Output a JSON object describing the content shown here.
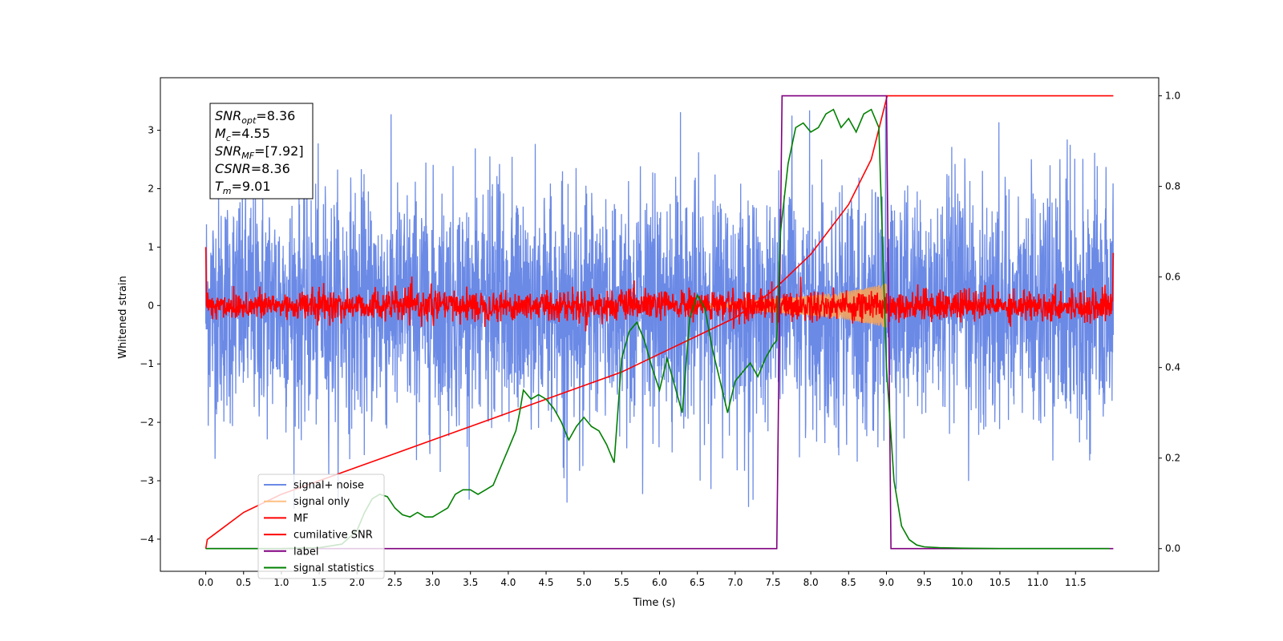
{
  "chart_data": {
    "type": "line",
    "xlabel": "Time (s)",
    "ylabel": "Whitened strain",
    "xlim": [
      -0.6,
      12.6
    ],
    "ylim": [
      -4.55,
      3.9
    ],
    "y2lim": [
      -0.05,
      1.04
    ],
    "x_ticks": [
      "0.0",
      "0.5",
      "1.0",
      "1.5",
      "2.0",
      "2.5",
      "3.0",
      "3.5",
      "4.0",
      "4.5",
      "5.0",
      "5.5",
      "6.0",
      "6.5",
      "7.0",
      "7.5",
      "8.0",
      "8.5",
      "9.0",
      "9.5",
      "10.0",
      "10.5",
      "11.0",
      "11.5"
    ],
    "y_ticks": [
      "3",
      "2",
      "1",
      "0",
      "−1",
      "−2",
      "−3",
      "−4"
    ],
    "y2_ticks": [
      "1.0",
      "0.8",
      "0.6",
      "0.4",
      "0.2",
      "0.0"
    ],
    "grid": false,
    "legend_position": "lower-left",
    "annotation": {
      "lines": [
        {
          "sym": "SNR",
          "sub": "opt",
          "value": "=8.36"
        },
        {
          "sym": "M",
          "sub": "c",
          "value": "=4.55"
        },
        {
          "sym": "SNR",
          "sub": "MF",
          "value": "=[7.92]"
        },
        {
          "sym": "CSNR",
          "sub": "",
          "value": "=8.36"
        },
        {
          "sym": "T",
          "sub": "m",
          "value": "=9.01"
        }
      ]
    },
    "series": [
      {
        "name": "signal+ noise",
        "color": "#6b8ae6",
        "axis": "left",
        "description_values": {
          "t_range": [
            0,
            12
          ],
          "std": 1.0
        }
      },
      {
        "name": "signal only",
        "color": "#f5a35c",
        "axis": "left",
        "envelope": {
          "t": [
            6.5,
            7.0,
            7.5,
            8.0,
            8.5,
            8.8,
            9.0,
            9.01
          ],
          "amp": [
            0.03,
            0.07,
            0.12,
            0.17,
            0.25,
            0.32,
            0.38,
            0.0
          ]
        }
      },
      {
        "name": "MF",
        "color": "#ff0000",
        "axis": "left",
        "description_values": {
          "t_range": [
            0,
            12
          ],
          "std": 0.13
        }
      },
      {
        "name": "cumilative SNR",
        "color": "#ff0000",
        "axis": "right",
        "x": [
          0.0,
          0.02,
          0.1,
          0.5,
          1.0,
          1.5,
          2.0,
          2.5,
          3.0,
          3.5,
          4.0,
          4.5,
          5.0,
          5.5,
          6.0,
          6.5,
          7.0,
          7.5,
          8.0,
          8.5,
          8.8,
          9.01,
          9.02,
          12.0
        ],
        "values": [
          0.0,
          0.02,
          0.03,
          0.08,
          0.12,
          0.15,
          0.18,
          0.21,
          0.24,
          0.27,
          0.3,
          0.33,
          0.36,
          0.39,
          0.43,
          0.47,
          0.51,
          0.57,
          0.65,
          0.76,
          0.86,
          1.0,
          1.0,
          1.0
        ]
      },
      {
        "name": "label",
        "color": "#800080",
        "axis": "right",
        "x": [
          0.0,
          7.55,
          7.62,
          9.0,
          9.06,
          12.0
        ],
        "values": [
          0.0,
          0.0,
          1.0,
          1.0,
          0.0,
          0.0
        ]
      },
      {
        "name": "signal statistics",
        "color": "#008000",
        "axis": "right",
        "x": [
          0.0,
          1.0,
          1.5,
          1.8,
          2.0,
          2.1,
          2.2,
          2.3,
          2.4,
          2.5,
          2.6,
          2.7,
          2.8,
          2.9,
          3.0,
          3.1,
          3.2,
          3.3,
          3.4,
          3.5,
          3.6,
          3.7,
          3.8,
          3.9,
          4.0,
          4.1,
          4.15,
          4.2,
          4.3,
          4.4,
          4.5,
          4.6,
          4.7,
          4.8,
          4.9,
          5.0,
          5.1,
          5.2,
          5.3,
          5.4,
          5.5,
          5.6,
          5.7,
          5.8,
          5.9,
          6.0,
          6.1,
          6.2,
          6.3,
          6.4,
          6.5,
          6.6,
          6.7,
          6.8,
          6.9,
          7.0,
          7.1,
          7.2,
          7.3,
          7.4,
          7.5,
          7.55,
          7.6,
          7.7,
          7.8,
          7.9,
          8.0,
          8.1,
          8.2,
          8.3,
          8.4,
          8.5,
          8.6,
          8.7,
          8.8,
          8.9,
          9.0,
          9.1,
          9.2,
          9.3,
          9.4,
          9.5,
          9.7,
          10.0,
          10.5,
          11.0,
          11.5,
          11.95
        ],
        "values": [
          0.0,
          0.0,
          0.002,
          0.01,
          0.04,
          0.08,
          0.11,
          0.12,
          0.115,
          0.09,
          0.075,
          0.07,
          0.08,
          0.07,
          0.07,
          0.08,
          0.09,
          0.12,
          0.13,
          0.13,
          0.12,
          0.13,
          0.14,
          0.18,
          0.22,
          0.26,
          0.3,
          0.35,
          0.33,
          0.34,
          0.33,
          0.31,
          0.28,
          0.24,
          0.27,
          0.29,
          0.27,
          0.26,
          0.23,
          0.19,
          0.42,
          0.48,
          0.5,
          0.46,
          0.4,
          0.35,
          0.42,
          0.36,
          0.3,
          0.51,
          0.56,
          0.53,
          0.44,
          0.37,
          0.3,
          0.37,
          0.39,
          0.41,
          0.38,
          0.42,
          0.45,
          0.46,
          0.7,
          0.85,
          0.93,
          0.94,
          0.92,
          0.93,
          0.96,
          0.97,
          0.93,
          0.95,
          0.92,
          0.96,
          0.97,
          0.93,
          0.4,
          0.15,
          0.05,
          0.02,
          0.008,
          0.004,
          0.002,
          0.001,
          0.0,
          0.0,
          0.0,
          0.0
        ]
      }
    ]
  }
}
